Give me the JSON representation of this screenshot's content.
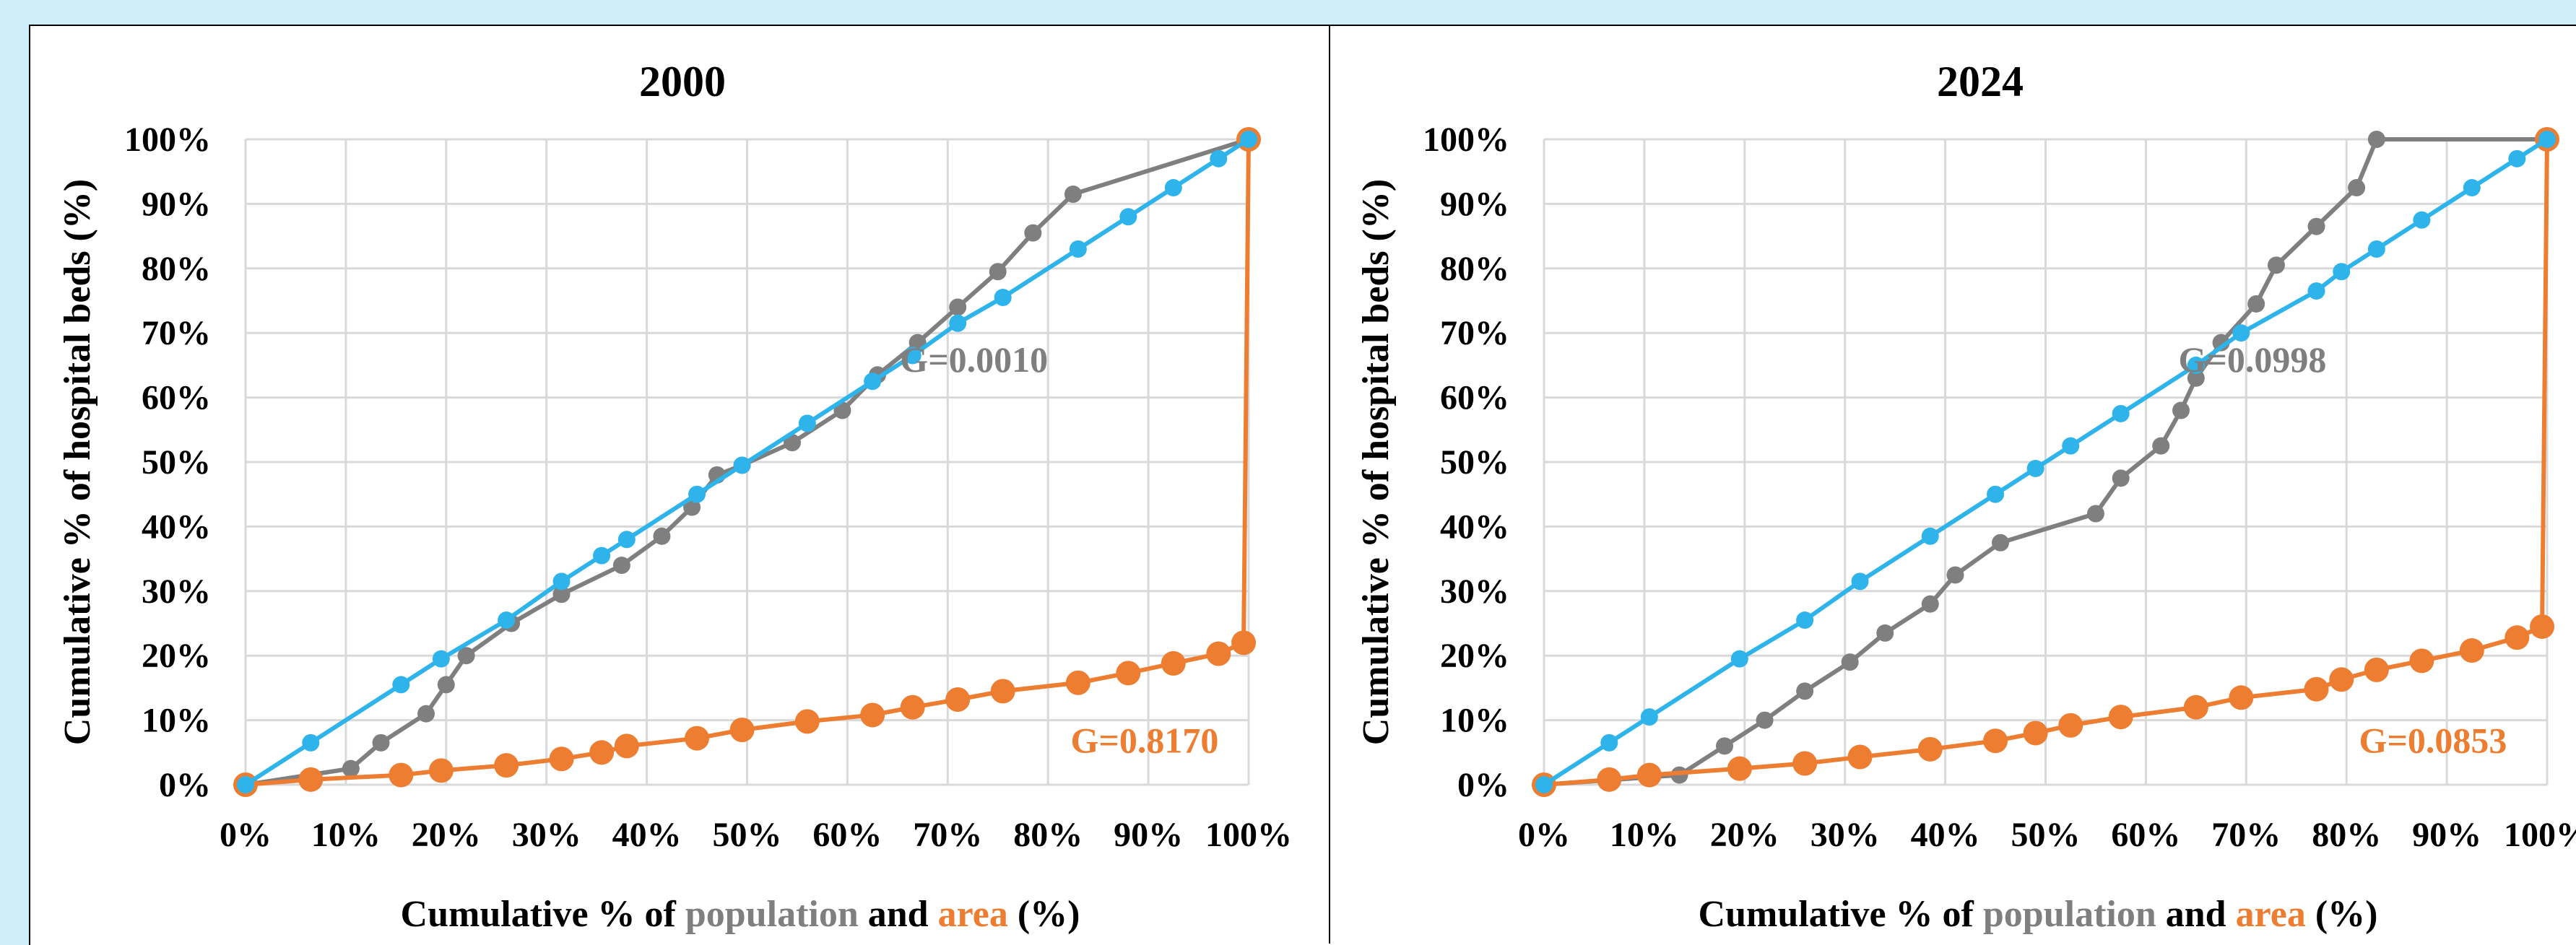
{
  "colors": {
    "background": "#cfeefc",
    "population": "#7f7f7f",
    "area": "#ed7d31",
    "equality": "#2eb4ea",
    "grid": "#d9d9d9"
  },
  "xaxis_label": {
    "prefix": "Cumulative % of ",
    "population": "population",
    "middle": " and ",
    "area": "area",
    "suffix": " (%)"
  },
  "chart_data": [
    {
      "type": "line",
      "title": "2000",
      "ylabel": "Cumulative % of hospital beds (%)",
      "xlim": [
        0,
        100
      ],
      "ylim": [
        0,
        100
      ],
      "x_ticks": [
        "0%",
        "10%",
        "20%",
        "30%",
        "40%",
        "50%",
        "60%",
        "70%",
        "80%",
        "90%",
        "100%"
      ],
      "y_ticks": [
        "0%",
        "10%",
        "20%",
        "30%",
        "40%",
        "50%",
        "60%",
        "70%",
        "80%",
        "90%",
        "100%"
      ],
      "grid": true,
      "annotations": [
        {
          "text": "G=0.0010",
          "series": "population",
          "x": 80,
          "y": 64
        },
        {
          "text": "G=0.8170",
          "series": "area",
          "x": 97,
          "y": 5
        }
      ],
      "series": [
        {
          "key": "equality",
          "x": [
            0,
            6.5,
            15.5,
            19.5,
            26,
            31.5,
            35.5,
            38,
            45,
            49.5,
            56,
            62.5,
            66.5,
            71,
            75.5,
            83,
            88,
            92.5,
            97,
            100
          ],
          "y": [
            0,
            6.5,
            15.5,
            19.5,
            25.5,
            31.5,
            35.5,
            38,
            45,
            49.5,
            56,
            62.5,
            66.5,
            71.5,
            75.5,
            83,
            88,
            92.5,
            97,
            100
          ]
        },
        {
          "key": "population",
          "x": [
            0,
            10.5,
            13.5,
            18,
            20,
            22,
            26.5,
            31.5,
            37.5,
            41.5,
            44.5,
            47,
            49.5,
            54.5,
            59.5,
            63,
            67,
            71,
            75,
            78.5,
            82.5,
            100
          ],
          "y": [
            0,
            2.5,
            6.5,
            11,
            15.5,
            20,
            25,
            29.5,
            34,
            38.5,
            43,
            48,
            49.5,
            53,
            58,
            63.5,
            68.5,
            74,
            79.5,
            85.5,
            91.5,
            100
          ]
        },
        {
          "key": "area",
          "x": [
            0,
            6.5,
            15.5,
            19.5,
            26,
            31.5,
            35.5,
            38,
            45,
            49.5,
            56,
            62.5,
            66.5,
            71,
            75.5,
            83,
            88,
            92.5,
            97,
            99.5,
            100
          ],
          "y": [
            0,
            0.8,
            1.5,
            2.2,
            3,
            4,
            5,
            6,
            7.2,
            8.5,
            9.8,
            10.8,
            12,
            13.2,
            14.5,
            15.8,
            17.3,
            18.8,
            20.3,
            22,
            100
          ]
        }
      ]
    },
    {
      "type": "line",
      "title": "2024",
      "ylabel": "Cumulative % of hospital beds (%)",
      "xlim": [
        0,
        100
      ],
      "ylim": [
        0,
        100
      ],
      "x_ticks": [
        "0%",
        "10%",
        "20%",
        "30%",
        "40%",
        "50%",
        "60%",
        "70%",
        "80%",
        "90%",
        "100%"
      ],
      "y_ticks": [
        "0%",
        "10%",
        "20%",
        "30%",
        "40%",
        "50%",
        "60%",
        "70%",
        "80%",
        "90%",
        "100%"
      ],
      "grid": true,
      "annotations": [
        {
          "text": "G=0.0998",
          "series": "population",
          "x": 78,
          "y": 64
        },
        {
          "text": "G=0.0853",
          "series": "area",
          "x": 96,
          "y": 5
        }
      ],
      "series": [
        {
          "key": "equality",
          "x": [
            0,
            6.5,
            10.5,
            19.5,
            26,
            31.5,
            38.5,
            45,
            49,
            52.5,
            57.5,
            65,
            69.5,
            77,
            79.5,
            83,
            87.5,
            92.5,
            97,
            100
          ],
          "y": [
            0,
            6.5,
            10.5,
            19.5,
            25.5,
            31.5,
            38.5,
            45,
            49,
            52.5,
            57.5,
            65,
            70,
            76.5,
            79.5,
            83,
            87.5,
            92.5,
            97,
            100
          ]
        },
        {
          "key": "population",
          "x": [
            0,
            13.5,
            18,
            22,
            26,
            30.5,
            34,
            38.5,
            41,
            45.5,
            55,
            57.5,
            61.5,
            63.5,
            65,
            67.5,
            71,
            73,
            77,
            81,
            83,
            100
          ],
          "y": [
            0,
            1.5,
            6,
            10,
            14.5,
            19,
            23.5,
            28,
            32.5,
            37.5,
            42,
            47.5,
            52.5,
            58,
            63,
            68.5,
            74.5,
            80.5,
            86.5,
            92.5,
            100,
            100
          ]
        },
        {
          "key": "area",
          "x": [
            0,
            6.5,
            10.5,
            19.5,
            26,
            31.5,
            38.5,
            45,
            49,
            52.5,
            57.5,
            65,
            69.5,
            77,
            79.5,
            83,
            87.5,
            92.5,
            97,
            99.5,
            100
          ],
          "y": [
            0,
            0.8,
            1.5,
            2.5,
            3.3,
            4.3,
            5.5,
            6.8,
            8,
            9.2,
            10.5,
            12,
            13.5,
            14.8,
            16.3,
            17.8,
            19.2,
            20.8,
            22.8,
            24.5,
            100
          ]
        }
      ]
    }
  ]
}
